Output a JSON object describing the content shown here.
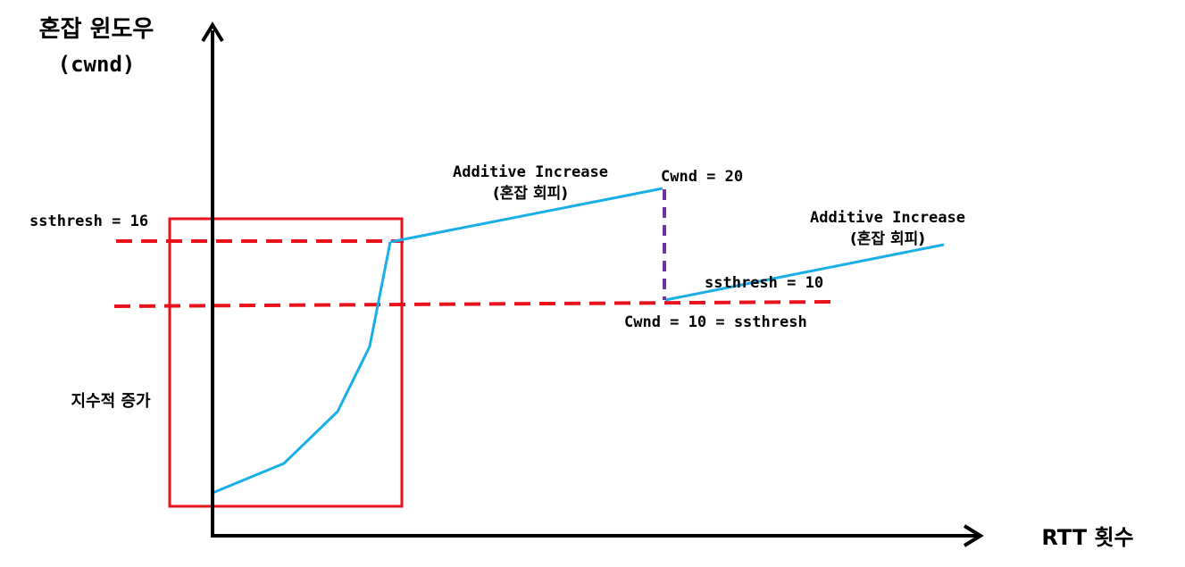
{
  "axes": {
    "y_label_line1": "혼잡 윈도우",
    "y_label_line2": "(cwnd)",
    "x_label": "RTT 횟수"
  },
  "labels": {
    "ssthresh_16": "ssthresh = 16",
    "exp_growth": "지수적 증가",
    "ai1_line1": "Additive Increase",
    "ai1_line2": "(혼잡 회피)",
    "cwnd_20": "Cwnd = 20",
    "ai2_line1": "Additive Increase",
    "ai2_line2": "(혼잡 회피)",
    "ssthresh_10": "ssthresh = 10",
    "cwnd_10": "Cwnd = 10 = ssthresh"
  },
  "colors": {
    "axis": "#000000",
    "cwnd_curve": "#19aee8",
    "threshold": "#e8121b",
    "drop": "#7030a0",
    "highlight_box": "#e8121b",
    "text": "#000000"
  }
}
